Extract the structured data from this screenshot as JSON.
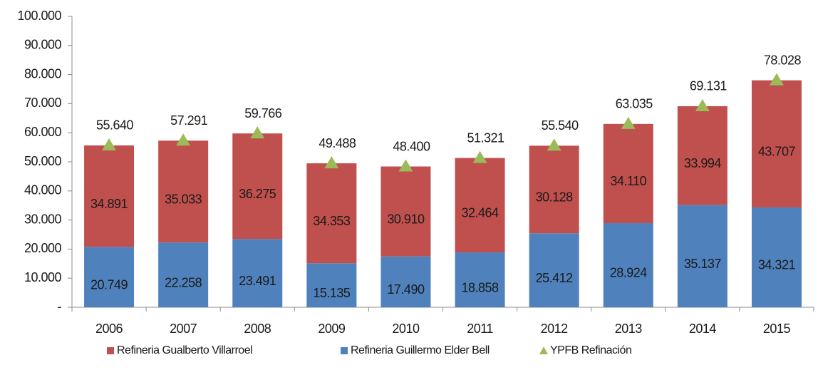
{
  "chart_data": {
    "type": "bar",
    "stacked": true,
    "categories": [
      "2006",
      "2007",
      "2008",
      "2009",
      "2010",
      "2011",
      "2012",
      "2013",
      "2014",
      "2015"
    ],
    "series": [
      {
        "name": "Refineria Gualberto Villarroel",
        "type": "bar",
        "color": "#c0504d",
        "values": [
          34891,
          35033,
          36275,
          34353,
          30910,
          32464,
          30128,
          34110,
          33994,
          43707
        ],
        "value_labels": [
          "34.891",
          "35.033",
          "36.275",
          "34.353",
          "30.910",
          "32.464",
          "30.128",
          "34.110",
          "33.994",
          "43.707"
        ]
      },
      {
        "name": "Refineria Guillermo Elder Bell",
        "type": "bar",
        "color": "#4f81bd",
        "values": [
          20749,
          22258,
          23491,
          15135,
          17490,
          18858,
          25412,
          28924,
          35137,
          34321
        ],
        "value_labels": [
          "20.749",
          "22.258",
          "23.491",
          "15.135",
          "17.490",
          "18.858",
          "25.412",
          "28.924",
          "35.137",
          "34.321"
        ]
      },
      {
        "name": "YPFB Refinación",
        "type": "scatter",
        "marker": "triangle",
        "color": "#9bbb59",
        "values": [
          55640,
          57291,
          59766,
          49488,
          48400,
          51321,
          55540,
          63035,
          69131,
          78028
        ],
        "value_labels": [
          "55.640",
          "57.291",
          "59.766",
          "49.488",
          "48.400",
          "51.321",
          "55.540",
          "63.035",
          "69.131",
          "78.028"
        ]
      }
    ],
    "ylim": [
      0,
      100000
    ],
    "yticks": [
      {
        "value": 0,
        "label": "-"
      },
      {
        "value": 10000,
        "label": "10.000"
      },
      {
        "value": 20000,
        "label": "20.000"
      },
      {
        "value": 30000,
        "label": "30.000"
      },
      {
        "value": 40000,
        "label": "40.000"
      },
      {
        "value": 50000,
        "label": "50.000"
      },
      {
        "value": 60000,
        "label": "60.000"
      },
      {
        "value": 70000,
        "label": "70.000"
      },
      {
        "value": 80000,
        "label": "80.000"
      },
      {
        "value": 90000,
        "label": "90.000"
      },
      {
        "value": 100000,
        "label": "100.000"
      }
    ],
    "legend": "bottom",
    "grid": false
  }
}
